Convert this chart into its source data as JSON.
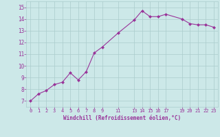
{
  "x": [
    0,
    1,
    2,
    3,
    4,
    5,
    6,
    7,
    8,
    9,
    11,
    13,
    14,
    15,
    16,
    17,
    19,
    20,
    21,
    22,
    23
  ],
  "y": [
    7.0,
    7.6,
    7.9,
    8.4,
    8.6,
    9.4,
    8.8,
    9.5,
    11.1,
    11.6,
    12.8,
    13.9,
    14.7,
    14.2,
    14.2,
    14.4,
    14.0,
    13.6,
    13.5,
    13.5,
    13.3
  ],
  "xticks": [
    0,
    1,
    2,
    3,
    4,
    5,
    6,
    7,
    8,
    9,
    11,
    13,
    14,
    15,
    16,
    17,
    19,
    20,
    21,
    22,
    23
  ],
  "xtick_labels": [
    "0",
    "1",
    "2",
    "3",
    "4",
    "5",
    "6",
    "7",
    "8",
    "9",
    "11",
    "13",
    "14",
    "15",
    "16",
    "17",
    "19",
    "20",
    "21",
    "22",
    "23"
  ],
  "yticks": [
    7,
    8,
    9,
    10,
    11,
    12,
    13,
    14,
    15
  ],
  "ytick_labels": [
    "7",
    "8",
    "9",
    "10",
    "11",
    "12",
    "13",
    "14",
    "15"
  ],
  "ylim": [
    6.5,
    15.5
  ],
  "xlim": [
    -0.5,
    23.5
  ],
  "xlabel": "Windchill (Refroidissement éolien,°C)",
  "line_color": "#993399",
  "marker": "D",
  "marker_size": 2,
  "bg_color": "#cce8e8",
  "grid_color": "#aacccc",
  "tick_color": "#993399",
  "label_color": "#993399"
}
